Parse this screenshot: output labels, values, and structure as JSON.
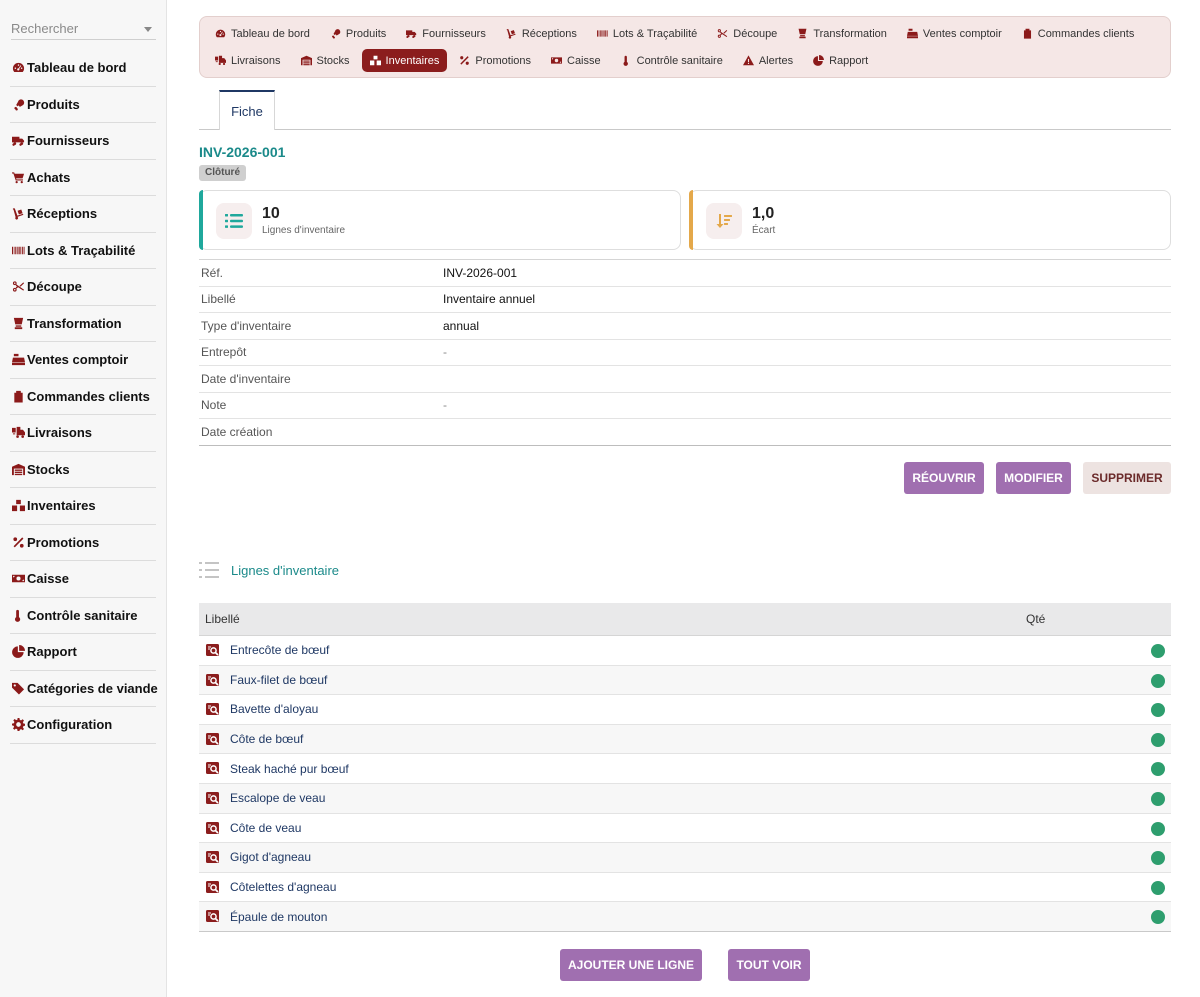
{
  "sidebar": {
    "search_placeholder": "Rechercher",
    "items": [
      {
        "label": "Tableau de bord",
        "icon": "gauge-icon"
      },
      {
        "label": "Produits",
        "icon": "drumstick-icon"
      },
      {
        "label": "Fournisseurs",
        "icon": "truck-icon"
      },
      {
        "label": "Achats",
        "icon": "cart-icon"
      },
      {
        "label": "Réceptions",
        "icon": "dolly-icon"
      },
      {
        "label": "Lots & Traçabilité",
        "icon": "barcode-icon"
      },
      {
        "label": "Découpe",
        "icon": "scissors-icon"
      },
      {
        "label": "Transformation",
        "icon": "blender-icon"
      },
      {
        "label": "Ventes comptoir",
        "icon": "cash-register-icon"
      },
      {
        "label": "Commandes clients",
        "icon": "clipboard-icon"
      },
      {
        "label": "Livraisons",
        "icon": "truck-loading-icon"
      },
      {
        "label": "Stocks",
        "icon": "warehouse-icon"
      },
      {
        "label": "Inventaires",
        "icon": "boxes-icon"
      },
      {
        "label": "Promotions",
        "icon": "percent-icon"
      },
      {
        "label": "Caisse",
        "icon": "money-bill-icon"
      },
      {
        "label": "Contrôle sanitaire",
        "icon": "thermometer-icon"
      },
      {
        "label": "Rapport",
        "icon": "pie-chart-icon"
      },
      {
        "label": "Catégories de viande",
        "icon": "tags-icon"
      },
      {
        "label": "Configuration",
        "icon": "cog-icon"
      }
    ]
  },
  "topnav": {
    "row1": [
      {
        "label": "Tableau de bord",
        "icon": "gauge-icon",
        "active": false
      },
      {
        "label": "Produits",
        "icon": "drumstick-icon",
        "active": false
      },
      {
        "label": "Fournisseurs",
        "icon": "truck-icon",
        "active": false
      },
      {
        "label": "Réceptions",
        "icon": "dolly-icon",
        "active": false
      },
      {
        "label": "Lots & Traçabilité",
        "icon": "barcode-icon",
        "active": false
      },
      {
        "label": "Découpe",
        "icon": "scissors-icon",
        "active": false
      },
      {
        "label": "Transformation",
        "icon": "blender-icon",
        "active": false
      },
      {
        "label": "Ventes comptoir",
        "icon": "cash-register-icon",
        "active": false
      },
      {
        "label": "Commandes clients",
        "icon": "clipboard-icon",
        "active": false
      }
    ],
    "row2": [
      {
        "label": "Livraisons",
        "icon": "truck-loading-icon",
        "active": false
      },
      {
        "label": "Stocks",
        "icon": "warehouse-icon",
        "active": false
      },
      {
        "label": "Inventaires",
        "icon": "boxes-icon",
        "active": true
      },
      {
        "label": "Promotions",
        "icon": "percent-icon",
        "active": false
      },
      {
        "label": "Caisse",
        "icon": "money-bill-icon",
        "active": false
      },
      {
        "label": "Contrôle sanitaire",
        "icon": "thermometer-icon",
        "active": false
      },
      {
        "label": "Alertes",
        "icon": "warning-icon",
        "active": false
      },
      {
        "label": "Rapport",
        "icon": "pie-chart-icon",
        "active": false
      }
    ]
  },
  "tabs": {
    "fiche": "Fiche"
  },
  "record": {
    "title": "INV-2026-001",
    "status": "Clôturé",
    "stats": {
      "lines": {
        "value": "10",
        "caption": "Lignes d'inventaire"
      },
      "gap": {
        "value": "1,0",
        "caption": "Écart"
      }
    },
    "fields": [
      {
        "key": "Réf.",
        "value": "INV-2026-001"
      },
      {
        "key": "Libellé",
        "value": "Inventaire annuel"
      },
      {
        "key": "Type d'inventaire",
        "value": "annual"
      },
      {
        "key": "Entrepôt",
        "value": "-"
      },
      {
        "key": "Date d'inventaire",
        "value": ""
      },
      {
        "key": "Note",
        "value": "-"
      },
      {
        "key": "Date création",
        "value": ""
      }
    ]
  },
  "actions": {
    "reopen": "RÉOUVRIR",
    "edit": "MODIFIER",
    "delete": "SUPPRIMER"
  },
  "lines": {
    "title": "Lignes d'inventaire",
    "col_label": "Libellé",
    "col_qty": "Qté",
    "rows": [
      "Entrecôte de bœuf",
      "Faux-filet de bœuf",
      "Bavette d'aloyau",
      "Côte de bœuf",
      "Steak haché pur bœuf",
      "Escalope de veau",
      "Côte de veau",
      "Gigot d'agneau",
      "Côtelettes d'agneau",
      "Épaule de mouton"
    ],
    "add": "AJOUTER UNE LIGNE",
    "see_all": "TOUT VOIR"
  },
  "colors": {
    "accent": "#8b1d1d",
    "teal": "#1b8a8a",
    "button": "#a06fb0",
    "status_ok": "#2e9e6e"
  }
}
